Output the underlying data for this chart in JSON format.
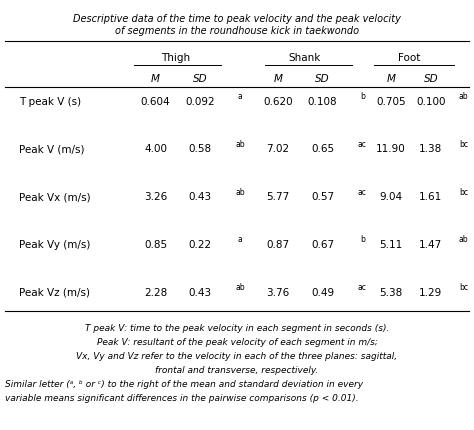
{
  "title_line1": "Descriptive data of the time to peak velocity and the peak velocity",
  "title_line2": "of segments in the roundhouse kick in taekwondo",
  "group_headers": [
    "Thigh",
    "Shank",
    "Foot"
  ],
  "row_labels": [
    "T peak V (s)",
    "Peak V (m/s)",
    "Peak Vx (m/s)",
    "Peak Vy (m/s)",
    "Peak Vz (m/s)"
  ],
  "data": [
    [
      "0.604",
      "0.092",
      "a",
      "0.620",
      "0.108",
      "b",
      "0.705",
      "0.100",
      "ab"
    ],
    [
      "4.00",
      "0.58",
      "ab",
      "7.02",
      "0.65",
      "ac",
      "11.90",
      "1.38",
      "bc"
    ],
    [
      "3.26",
      "0.43",
      "ab",
      "5.77",
      "0.57",
      "ac",
      "9.04",
      "1.61",
      "bc"
    ],
    [
      "0.85",
      "0.22",
      "a",
      "0.87",
      "0.67",
      "b",
      "5.11",
      "1.47",
      "ab"
    ],
    [
      "2.28",
      "0.43",
      "ab",
      "3.76",
      "0.49",
      "ac",
      "5.38",
      "1.29",
      "bc"
    ]
  ],
  "footnotes_center": [
    "T peak V: time to the peak velocity in each segment in seconds (s).",
    "Peak V: resultant of the peak velocity of each segment in m/s;",
    "Vx, Vy and Vz refer to the velocity in each of the three planes: sagittal,",
    "frontal and transverse, respectively."
  ],
  "footnotes_left": [
    "Similar letter (ᵃ, ᵇ or ᶜ) to the right of the mean and standard deviation in every",
    "variable means significant differences in the pairwise comparisons (p < 0.01)."
  ],
  "bg_color": "#ffffff",
  "text_color": "#000000",
  "title_fontsize": 7.0,
  "header_fontsize": 7.5,
  "data_fontsize": 7.5,
  "sig_fontsize": 5.5,
  "footnote_fontsize": 6.5
}
